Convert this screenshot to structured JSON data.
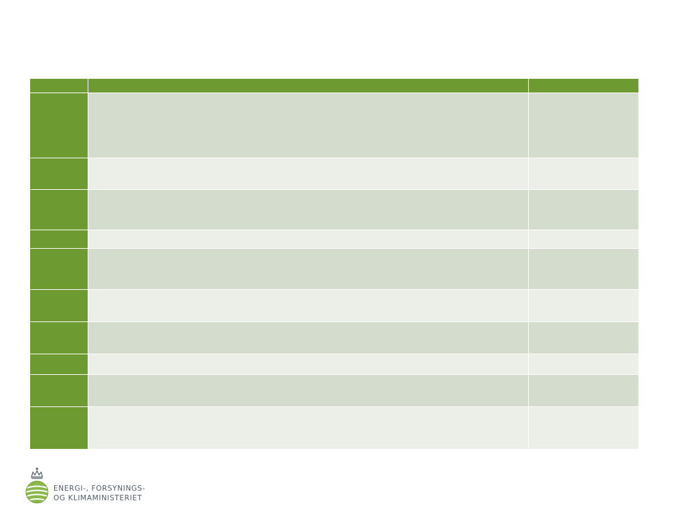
{
  "slide": {
    "title": ""
  },
  "table": {
    "headers": [
      "",
      "",
      ""
    ],
    "rows": [
      {
        "label": "",
        "text": "",
        "value": ""
      },
      {
        "label": "",
        "text": "",
        "value": ""
      },
      {
        "label": "",
        "text": "",
        "value": ""
      },
      {
        "label": "",
        "text": "",
        "value": ""
      },
      {
        "label": "",
        "text": "",
        "value": ""
      },
      {
        "label": "",
        "text": "",
        "value": ""
      },
      {
        "label": "",
        "text": "",
        "value": ""
      },
      {
        "label": "",
        "text": "",
        "value": ""
      },
      {
        "label": "",
        "text": "",
        "value": ""
      },
      {
        "label": "",
        "text": "",
        "value": ""
      }
    ]
  },
  "logo": {
    "icon": "crown-globe-icon",
    "line1": "ENERGI-, FORSYNINGS-",
    "line2": "OG KLIMAMINISTERIET",
    "colors": {
      "green": "#6e9a32",
      "gray": "#4f5b66"
    }
  },
  "colors": {
    "header": "#6e9a32",
    "row_dark": "#d4ddcd",
    "row_light": "#ebefe7"
  }
}
